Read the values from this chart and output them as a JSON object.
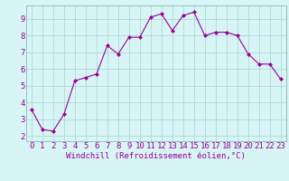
{
  "x": [
    0,
    1,
    2,
    3,
    4,
    5,
    6,
    7,
    8,
    9,
    10,
    11,
    12,
    13,
    14,
    15,
    16,
    17,
    18,
    19,
    20,
    21,
    22,
    23
  ],
  "y": [
    3.6,
    2.4,
    2.3,
    3.3,
    5.3,
    5.5,
    5.7,
    7.4,
    6.9,
    7.9,
    7.9,
    9.1,
    9.3,
    8.3,
    9.2,
    9.4,
    8.0,
    8.2,
    8.2,
    8.0,
    6.9,
    6.3,
    6.3,
    5.4
  ],
  "xlabel": "Windchill (Refroidissement éolien,°C)",
  "yticks": [
    2,
    3,
    4,
    5,
    6,
    7,
    8,
    9
  ],
  "xticks": [
    0,
    1,
    2,
    3,
    4,
    5,
    6,
    7,
    8,
    9,
    10,
    11,
    12,
    13,
    14,
    15,
    16,
    17,
    18,
    19,
    20,
    21,
    22,
    23
  ],
  "line_color": "#990099",
  "marker": "D",
  "marker_size": 2.0,
  "bg_color": "#d8f5f5",
  "grid_color": "#b0d8d8",
  "xlabel_color": "#990099",
  "tick_color": "#990099",
  "xlabel_fontsize": 6.5,
  "tick_fontsize": 6.5
}
